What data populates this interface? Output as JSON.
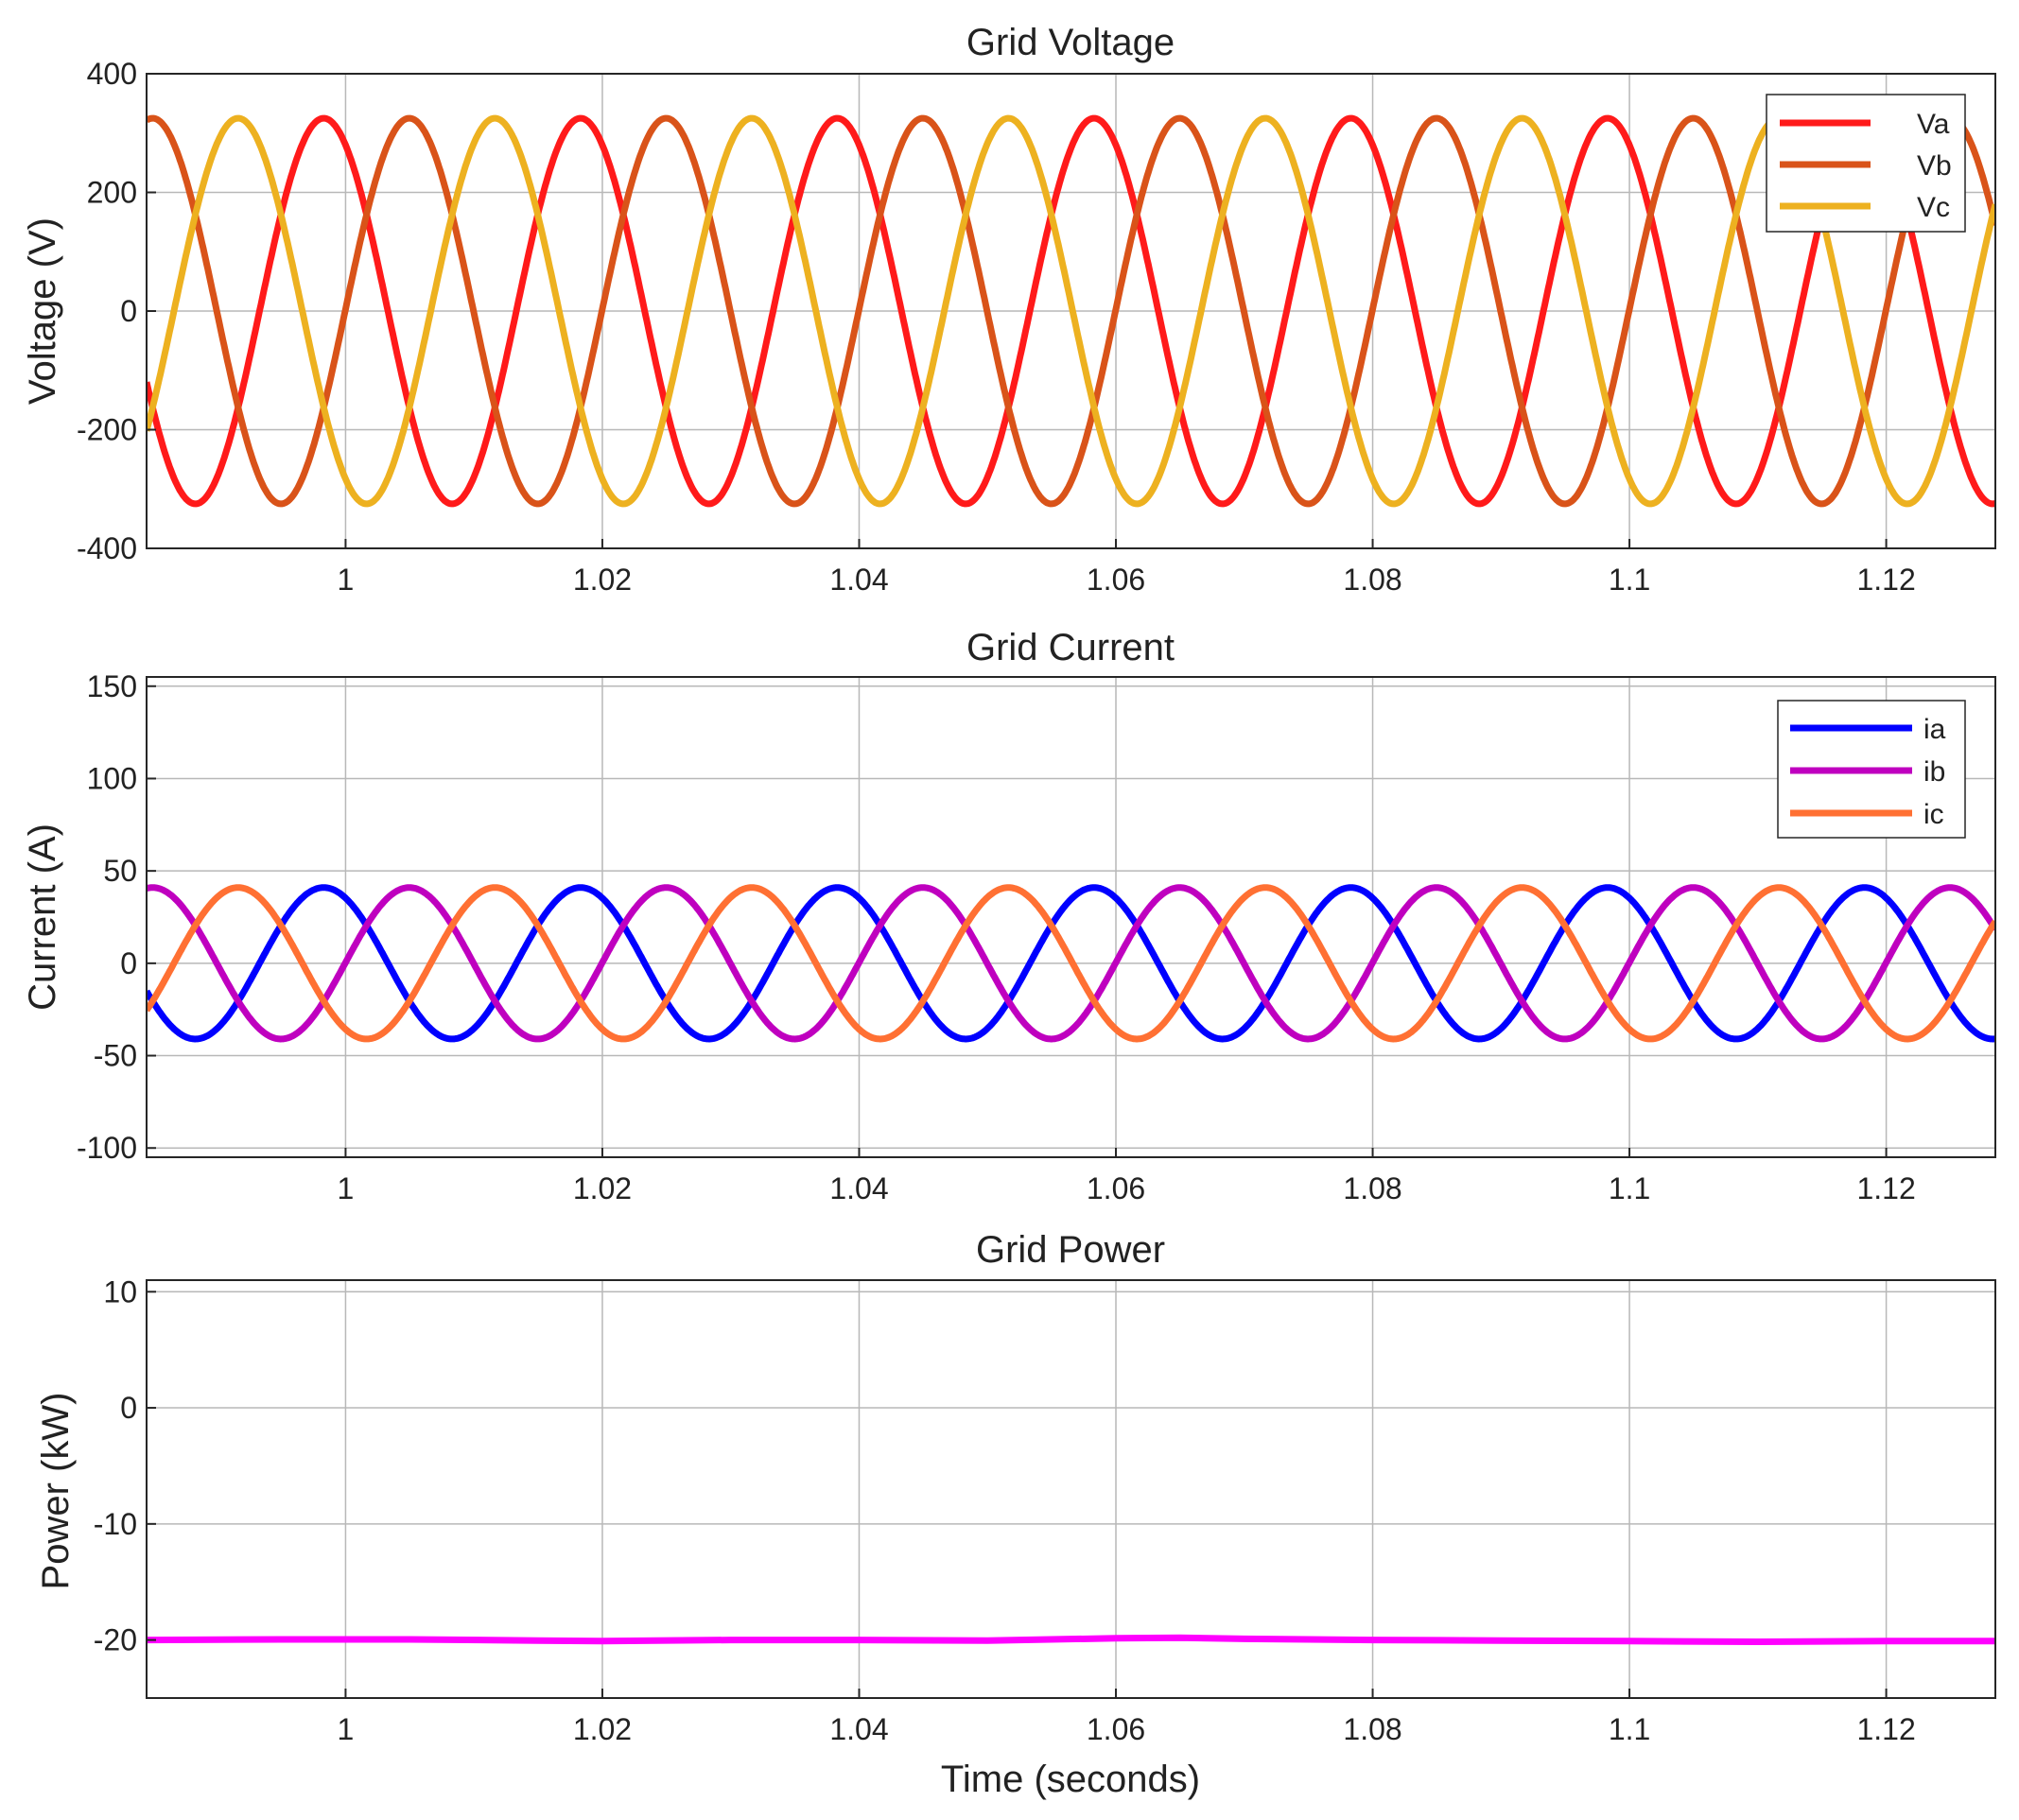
{
  "chart_data": [
    {
      "type": "line",
      "title": "Grid Voltage",
      "xlabel": "",
      "ylabel": "Voltage (V)",
      "xlim": [
        0.9845,
        1.1285
      ],
      "ylim": [
        -400,
        400
      ],
      "xticks": [
        1,
        1.02,
        1.04,
        1.06,
        1.08,
        1.1,
        1.12
      ],
      "xtick_labels": [
        "1",
        "1.02",
        "1.04",
        "1.06",
        "1.08",
        "1.1",
        "1.12"
      ],
      "yticks": [
        -400,
        -200,
        0,
        200,
        400
      ],
      "ytick_labels": [
        "-400",
        "-200",
        "0",
        "200",
        "400"
      ],
      "grid": true,
      "legend_position": "top-right",
      "waveform": {
        "frequency_hz": 50,
        "phase_reference_time": 0.9983
      },
      "series": [
        {
          "name": "Va",
          "color": "#ff1a1a",
          "amplitude": 325,
          "phase_deg": 0
        },
        {
          "name": "Vb",
          "color": "#d95319",
          "amplitude": 325,
          "phase_deg": -120
        },
        {
          "name": "Vc",
          "color": "#edb120",
          "amplitude": 325,
          "phase_deg": 120
        }
      ]
    },
    {
      "type": "line",
      "title": "Grid Current",
      "xlabel": "",
      "ylabel": "Current (A)",
      "xlim": [
        0.9845,
        1.1285
      ],
      "ylim": [
        -105,
        155
      ],
      "xticks": [
        1,
        1.02,
        1.04,
        1.06,
        1.08,
        1.1,
        1.12
      ],
      "xtick_labels": [
        "1",
        "1.02",
        "1.04",
        "1.06",
        "1.08",
        "1.1",
        "1.12"
      ],
      "yticks": [
        -100,
        -50,
        0,
        50,
        100,
        150
      ],
      "ytick_labels": [
        "-100",
        "-50",
        "0",
        "50",
        "100",
        "150"
      ],
      "grid": true,
      "legend_position": "top-right",
      "waveform": {
        "frequency_hz": 50,
        "phase_reference_time": 0.9983
      },
      "series": [
        {
          "name": "ia",
          "color": "#0000ff",
          "amplitude": 41,
          "phase_deg": 0
        },
        {
          "name": "ib",
          "color": "#bf00bf",
          "amplitude": 41,
          "phase_deg": -120
        },
        {
          "name": "ic",
          "color": "#ff7033",
          "amplitude": 41,
          "phase_deg": 120
        }
      ]
    },
    {
      "type": "line",
      "title": "Grid Power",
      "xlabel": "Time (seconds)",
      "ylabel": "Power (kW)",
      "xlim": [
        0.9845,
        1.1285
      ],
      "ylim": [
        -25,
        11
      ],
      "xticks": [
        1,
        1.02,
        1.04,
        1.06,
        1.08,
        1.1,
        1.12
      ],
      "xtick_labels": [
        "1",
        "1.02",
        "1.04",
        "1.06",
        "1.08",
        "1.1",
        "1.12"
      ],
      "yticks": [
        -20,
        -10,
        0,
        10
      ],
      "ytick_labels": [
        "-20",
        "-10",
        "0",
        "10"
      ],
      "grid": true,
      "series": [
        {
          "name": "",
          "color": "#ff00ff",
          "x": [
            0.9845,
            0.995,
            1.005,
            1.015,
            1.02,
            1.03,
            1.04,
            1.05,
            1.06,
            1.065,
            1.07,
            1.08,
            1.09,
            1.1,
            1.11,
            1.12,
            1.1285
          ],
          "y": [
            -20.0,
            -19.95,
            -19.95,
            -20.05,
            -20.1,
            -20.0,
            -20.0,
            -20.05,
            -19.85,
            -19.8,
            -19.9,
            -20.0,
            -20.05,
            -20.1,
            -20.15,
            -20.1,
            -20.1
          ]
        }
      ]
    }
  ]
}
